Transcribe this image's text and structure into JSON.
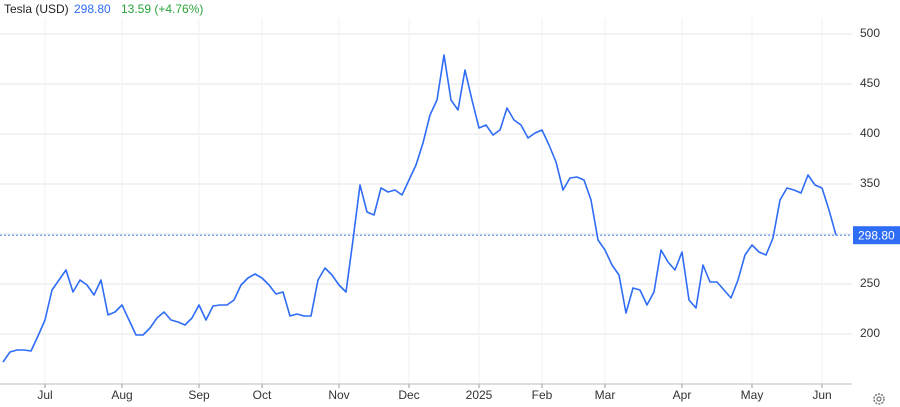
{
  "header": {
    "name": "Tesla (USD)",
    "price": "298.80",
    "change": "13.59 (+4.76%)"
  },
  "chart_data": {
    "type": "line",
    "categories": [
      null,
      null,
      null,
      null,
      null,
      null,
      "Jul",
      null,
      null,
      null,
      null,
      null,
      null,
      null,
      null,
      null,
      null,
      "Aug",
      null,
      null,
      null,
      null,
      null,
      null,
      null,
      null,
      null,
      null,
      "Sep",
      null,
      null,
      null,
      null,
      null,
      null,
      null,
      null,
      "Oct",
      null,
      null,
      null,
      null,
      null,
      null,
      null,
      null,
      null,
      null,
      "Nov",
      null,
      null,
      null,
      null,
      null,
      null,
      null,
      null,
      null,
      "Dec",
      null,
      null,
      null,
      null,
      null,
      null,
      null,
      null,
      null,
      "2025",
      null,
      null,
      null,
      null,
      null,
      null,
      null,
      null,
      "Feb",
      null,
      null,
      null,
      null,
      null,
      null,
      null,
      null,
      "Mar",
      null,
      null,
      null,
      null,
      null,
      null,
      null,
      null,
      null,
      null,
      "Apr",
      null,
      null,
      null,
      null,
      null,
      null,
      null,
      null,
      null,
      "May",
      null,
      null,
      null,
      null,
      null,
      null,
      null,
      null,
      null,
      "Jun",
      null,
      null
    ],
    "series": [
      {
        "color": "#2f6df6",
        "values": [
          172,
          182,
          184,
          184,
          183,
          198,
          214,
          244,
          254,
          264,
          242,
          254,
          249,
          239,
          254,
          219,
          222,
          229,
          214,
          199,
          199,
          206,
          216,
          222,
          214,
          212,
          209,
          216,
          229,
          214,
          228,
          229,
          229,
          234,
          249,
          256,
          260,
          256,
          249,
          240,
          242,
          218,
          220,
          218,
          218,
          254,
          266,
          259,
          249,
          242,
          294,
          349,
          322,
          319,
          346,
          342,
          344,
          339,
          354,
          369,
          391,
          419,
          434,
          479,
          434,
          424,
          464,
          434,
          406,
          409,
          399,
          404,
          426,
          414,
          409,
          396,
          401,
          404,
          389,
          372,
          344,
          356,
          357,
          354,
          334,
          294,
          284,
          269,
          259,
          221,
          246,
          244,
          229,
          242,
          284,
          272,
          264,
          282,
          234,
          226,
          269,
          252,
          252,
          244,
          236,
          254,
          279,
          289,
          282,
          279,
          296,
          334,
          346,
          344,
          341,
          359,
          349,
          346,
          324,
          298.8
        ]
      }
    ],
    "last_price": {
      "value": 298.8,
      "label": "298.80"
    },
    "ylim": [
      150,
      516
    ],
    "yticks": [
      200,
      250,
      300,
      350,
      400,
      450,
      500
    ],
    "grid": true
  }
}
